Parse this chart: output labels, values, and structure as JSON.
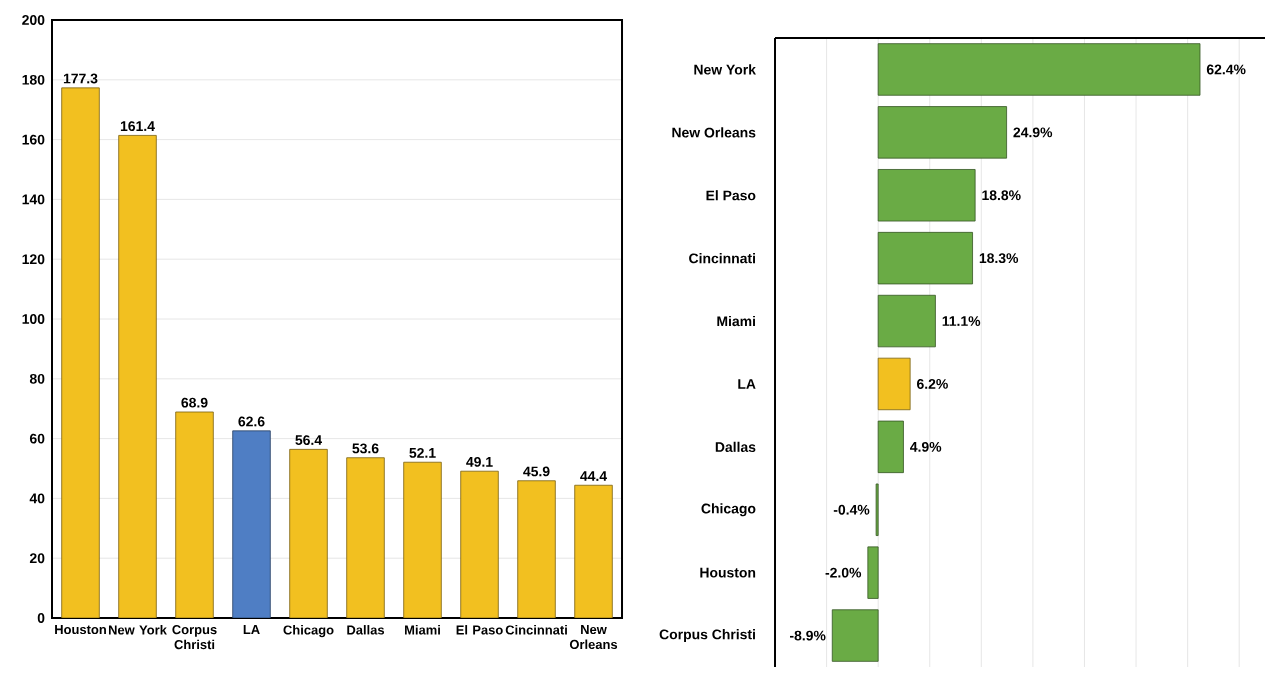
{
  "chart_data": [
    {
      "type": "bar",
      "categories": [
        "Houston",
        "New York",
        "Corpus Christi",
        "LA",
        "Chicago",
        "Dallas",
        "Miami",
        "El Paso",
        "Cincinnati",
        "New Orleans"
      ],
      "values": [
        177.3,
        161.4,
        68.9,
        62.6,
        56.4,
        53.6,
        52.1,
        49.1,
        45.9,
        44.4
      ],
      "colors": [
        "#f2c020",
        "#f2c020",
        "#f2c020",
        "#4f7ec4",
        "#f2c020",
        "#f2c020",
        "#f2c020",
        "#f2c020",
        "#f2c020",
        "#f2c020"
      ],
      "ylim": [
        0,
        200
      ],
      "yticks": [
        0,
        20,
        40,
        60,
        80,
        100,
        120,
        140,
        160,
        180,
        200
      ],
      "grid": "y",
      "data_labels": true
    },
    {
      "type": "bar",
      "orientation": "horizontal",
      "categories": [
        "New York",
        "New Orleans",
        "El Paso",
        "Cincinnati",
        "Miami",
        "LA",
        "Dallas",
        "Chicago",
        "Houston",
        "Corpus Christi"
      ],
      "values": [
        62.4,
        24.9,
        18.8,
        18.3,
        11.1,
        6.2,
        4.9,
        -0.4,
        -2.0,
        -8.9
      ],
      "colors": [
        "#6aab45",
        "#6aab45",
        "#6aab45",
        "#6aab45",
        "#6aab45",
        "#f2c020",
        "#6aab45",
        "#6aab45",
        "#6aab45",
        "#6aab45"
      ],
      "value_labels": [
        "62.4%",
        "24.9%",
        "18.8%",
        "18.3%",
        "11.1%",
        "6.2%",
        "4.9%",
        "-0.4%",
        "-2.0%",
        "-8.9%"
      ],
      "xlim": [
        -20,
        75
      ],
      "xticks": [
        {
          "value": -20,
          "label": null
        },
        {
          "value": -10,
          "label": null
        },
        {
          "value": 0,
          "label": null
        },
        {
          "value": 10,
          "label": null
        },
        {
          "value": 20,
          "label": null
        },
        {
          "value": 30,
          "label": null
        },
        {
          "value": 40,
          "label": null
        },
        {
          "value": 50,
          "label": null
        },
        {
          "value": 60,
          "label": null
        },
        {
          "value": 70,
          "label": null
        }
      ],
      "grid": "x"
    }
  ]
}
